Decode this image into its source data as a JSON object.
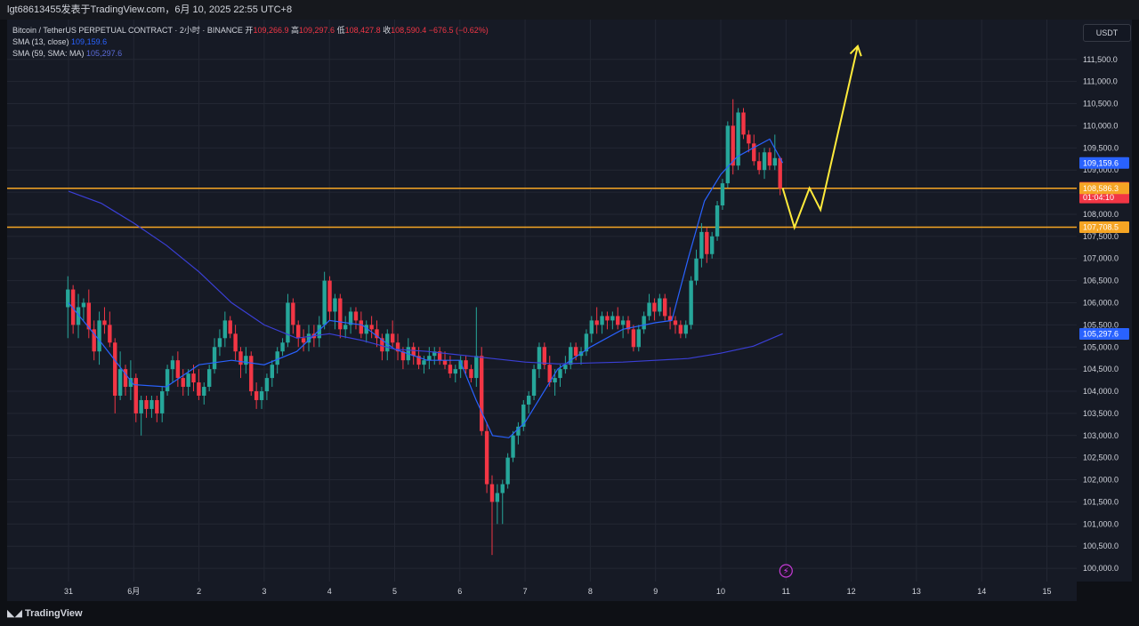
{
  "header": {
    "title": "lgt68613455发表于TradingView.com，6月 10, 2025 22:55 UTC+8"
  },
  "legend": {
    "symbol": "Bitcoin / TetherUS PERPETUAL CONTRACT · 2小时 · BINANCE",
    "ohlc": [
      {
        "label": "开",
        "value": "109,266.9"
      },
      {
        "label": "高",
        "value": "109,297.6"
      },
      {
        "label": "低",
        "value": "108,427.8"
      },
      {
        "label": "收",
        "value": "108,590.4"
      }
    ],
    "change": "−676.5 (−0.62%)",
    "sma1_label": "SMA (13, close)",
    "sma1_value": "109,159.6",
    "sma2_label": "SMA (59, SMA: MA)",
    "sma2_value": "105,297.6"
  },
  "currency_button": "USDT",
  "footer": {
    "logo": "TradingView"
  },
  "colors": {
    "up": "#26a69a",
    "down": "#f23645",
    "sma13": "#2962ff",
    "sma59": "#3a3fd6",
    "level": "#f5a524",
    "projection": "#ffeb3b",
    "background": "#161a25"
  },
  "icons": {
    "event": "lightning-icon",
    "logo": "tradingview-logo-icon"
  },
  "chart_data": {
    "type": "candlestick",
    "ylim": [
      99700,
      112400
    ],
    "y_ticks": [
      "100,000.0",
      "100,500.0",
      "101,000.0",
      "101,500.0",
      "102,000.0",
      "102,500.0",
      "103,000.0",
      "103,500.0",
      "104,000.0",
      "104,500.0",
      "105,000.0",
      "105,500.0",
      "106,000.0",
      "106,500.0",
      "107,000.0",
      "107,500.0",
      "108,000.0",
      "108,500.0",
      "109,000.0",
      "109,500.0",
      "110,000.0",
      "110,500.0",
      "111,000.0",
      "111,500.0"
    ],
    "x_ticks": [
      "31",
      "6月",
      "2",
      "3",
      "4",
      "5",
      "6",
      "7",
      "8",
      "9",
      "10",
      "11",
      "12",
      "13",
      "14",
      "15"
    ],
    "x_tick_days": [
      31,
      32,
      33,
      34,
      35,
      36,
      37,
      38,
      39,
      40,
      41,
      42,
      43,
      44,
      45,
      46
    ],
    "candles": [
      [
        105.9,
        106.6,
        105.2,
        106.3
      ],
      [
        106.3,
        106.4,
        105.3,
        105.5
      ],
      [
        105.5,
        106.2,
        105.2,
        105.9
      ],
      [
        105.9,
        106.1,
        105.6,
        106.0
      ],
      [
        106.0,
        106.3,
        105.2,
        105.4
      ],
      [
        105.4,
        105.6,
        104.7,
        104.9
      ],
      [
        104.9,
        105.8,
        104.6,
        105.6
      ],
      [
        105.6,
        105.9,
        105.3,
        105.5
      ],
      [
        105.5,
        105.8,
        105.0,
        105.1
      ],
      [
        105.1,
        105.2,
        103.5,
        103.9
      ],
      [
        103.9,
        104.9,
        103.8,
        104.5
      ],
      [
        104.5,
        104.6,
        103.9,
        104.1
      ],
      [
        104.1,
        104.7,
        103.8,
        104.3
      ],
      [
        104.3,
        104.4,
        103.3,
        103.5
      ],
      [
        103.5,
        103.9,
        103.0,
        103.8
      ],
      [
        103.8,
        103.9,
        103.4,
        103.6
      ],
      [
        103.6,
        103.9,
        103.4,
        103.8
      ],
      [
        103.8,
        103.9,
        103.3,
        103.5
      ],
      [
        103.5,
        104.1,
        103.3,
        104.0
      ],
      [
        104.0,
        104.6,
        103.9,
        104.5
      ],
      [
        104.5,
        104.8,
        104.2,
        104.7
      ],
      [
        104.7,
        104.9,
        104.1,
        104.3
      ],
      [
        104.3,
        104.5,
        103.9,
        104.1
      ],
      [
        104.1,
        104.5,
        103.9,
        104.4
      ],
      [
        104.4,
        104.6,
        104.0,
        104.2
      ],
      [
        104.2,
        104.5,
        103.8,
        103.9
      ],
      [
        103.9,
        104.2,
        103.7,
        104.1
      ],
      [
        104.1,
        104.6,
        104.0,
        104.5
      ],
      [
        104.5,
        105.2,
        104.4,
        105.0
      ],
      [
        105.0,
        105.4,
        104.8,
        105.2
      ],
      [
        105.2,
        105.8,
        105.0,
        105.6
      ],
      [
        105.6,
        105.7,
        105.2,
        105.3
      ],
      [
        105.3,
        105.5,
        104.7,
        104.9
      ],
      [
        104.9,
        105.0,
        104.3,
        104.6
      ],
      [
        104.6,
        105.0,
        104.4,
        104.8
      ],
      [
        104.8,
        104.9,
        103.9,
        104.0
      ],
      [
        104.0,
        104.2,
        103.6,
        103.8
      ],
      [
        103.8,
        104.1,
        103.6,
        104.0
      ],
      [
        104.0,
        104.4,
        103.8,
        104.3
      ],
      [
        104.3,
        104.7,
        104.1,
        104.6
      ],
      [
        104.6,
        105.0,
        104.4,
        104.9
      ],
      [
        104.9,
        105.2,
        104.8,
        105.1
      ],
      [
        105.1,
        106.2,
        105.0,
        106.0
      ],
      [
        106.0,
        106.1,
        105.3,
        105.5
      ],
      [
        105.5,
        105.6,
        105.0,
        105.2
      ],
      [
        105.2,
        105.4,
        104.9,
        105.1
      ],
      [
        105.1,
        105.5,
        104.9,
        105.3
      ],
      [
        105.3,
        105.5,
        105.0,
        105.2
      ],
      [
        105.2,
        105.7,
        105.0,
        105.5
      ],
      [
        105.5,
        106.7,
        105.4,
        106.5
      ],
      [
        106.5,
        106.6,
        105.6,
        105.8
      ],
      [
        105.8,
        106.2,
        105.4,
        106.1
      ],
      [
        106.1,
        106.2,
        105.2,
        105.4
      ],
      [
        105.4,
        105.7,
        105.2,
        105.5
      ],
      [
        105.5,
        105.9,
        105.3,
        105.8
      ],
      [
        105.8,
        105.9,
        105.4,
        105.6
      ],
      [
        105.6,
        105.8,
        105.2,
        105.3
      ],
      [
        105.3,
        105.6,
        105.1,
        105.5
      ],
      [
        105.5,
        105.7,
        105.2,
        105.4
      ],
      [
        105.4,
        105.6,
        105.0,
        105.2
      ],
      [
        105.2,
        105.3,
        104.7,
        104.9
      ],
      [
        104.9,
        105.4,
        104.7,
        105.3
      ],
      [
        105.3,
        105.6,
        105.0,
        105.1
      ],
      [
        105.1,
        105.3,
        104.7,
        104.9
      ],
      [
        104.9,
        105.0,
        104.5,
        104.7
      ],
      [
        104.7,
        105.2,
        104.6,
        105.0
      ],
      [
        105.0,
        105.1,
        104.6,
        104.8
      ],
      [
        104.8,
        105.0,
        104.5,
        104.6
      ],
      [
        104.6,
        104.8,
        104.4,
        104.7
      ],
      [
        104.7,
        105.0,
        104.5,
        104.8
      ],
      [
        104.8,
        105.0,
        104.6,
        104.9
      ],
      [
        104.9,
        105.0,
        104.6,
        104.7
      ],
      [
        104.7,
        104.9,
        104.5,
        104.6
      ],
      [
        104.6,
        104.8,
        104.3,
        104.4
      ],
      [
        104.4,
        104.6,
        104.2,
        104.5
      ],
      [
        104.5,
        104.8,
        104.3,
        104.7
      ],
      [
        104.7,
        104.8,
        104.4,
        104.5
      ],
      [
        104.5,
        104.6,
        104.2,
        104.3
      ],
      [
        104.3,
        105.9,
        104.1,
        104.8
      ],
      [
        104.8,
        105.0,
        103.0,
        103.1
      ],
      [
        103.1,
        103.3,
        101.7,
        101.9
      ],
      [
        101.9,
        102.1,
        100.3,
        101.5
      ],
      [
        101.5,
        101.9,
        101.0,
        101.7
      ],
      [
        101.7,
        102.0,
        101.0,
        101.9
      ],
      [
        101.9,
        102.6,
        101.8,
        102.5
      ],
      [
        102.5,
        103.1,
        102.4,
        103.0
      ],
      [
        103.0,
        103.3,
        102.8,
        103.2
      ],
      [
        103.2,
        103.8,
        103.1,
        103.7
      ],
      [
        103.7,
        104.0,
        103.5,
        103.9
      ],
      [
        103.9,
        104.6,
        103.8,
        104.5
      ],
      [
        104.5,
        105.1,
        104.3,
        105.0
      ],
      [
        105.0,
        105.1,
        104.5,
        104.6
      ],
      [
        104.6,
        104.8,
        104.1,
        104.2
      ],
      [
        104.2,
        104.5,
        103.9,
        104.3
      ],
      [
        104.3,
        104.6,
        104.1,
        104.5
      ],
      [
        104.5,
        104.8,
        104.4,
        104.6
      ],
      [
        104.6,
        105.1,
        104.5,
        105.0
      ],
      [
        105.0,
        105.1,
        104.7,
        104.8
      ],
      [
        104.8,
        105.0,
        104.6,
        104.9
      ],
      [
        104.9,
        105.4,
        104.8,
        105.3
      ],
      [
        105.3,
        105.7,
        105.1,
        105.6
      ],
      [
        105.6,
        105.9,
        105.3,
        105.5
      ],
      [
        105.5,
        105.8,
        105.3,
        105.7
      ],
      [
        105.7,
        105.8,
        105.4,
        105.6
      ],
      [
        105.6,
        105.8,
        105.4,
        105.7
      ],
      [
        105.7,
        105.9,
        105.4,
        105.5
      ],
      [
        105.5,
        105.7,
        105.2,
        105.6
      ],
      [
        105.6,
        105.7,
        105.3,
        105.4
      ],
      [
        105.4,
        105.5,
        104.9,
        105.0
      ],
      [
        105.0,
        105.5,
        104.9,
        105.4
      ],
      [
        105.4,
        105.8,
        105.3,
        105.7
      ],
      [
        105.7,
        106.2,
        105.6,
        106.0
      ],
      [
        106.0,
        106.1,
        105.6,
        105.8
      ],
      [
        105.8,
        106.2,
        105.7,
        106.1
      ],
      [
        106.1,
        106.2,
        105.6,
        105.7
      ],
      [
        105.7,
        105.9,
        105.4,
        105.6
      ],
      [
        105.6,
        105.7,
        105.3,
        105.5
      ],
      [
        105.5,
        105.6,
        105.2,
        105.3
      ],
      [
        105.3,
        105.6,
        105.2,
        105.5
      ],
      [
        105.5,
        106.6,
        105.4,
        106.5
      ],
      [
        106.5,
        107.2,
        106.4,
        107.0
      ],
      [
        107.0,
        107.8,
        106.8,
        107.6
      ],
      [
        107.6,
        107.7,
        106.9,
        107.1
      ],
      [
        107.1,
        107.6,
        107.0,
        107.5
      ],
      [
        107.5,
        108.3,
        107.4,
        108.2
      ],
      [
        108.2,
        108.8,
        108.1,
        108.7
      ],
      [
        108.7,
        110.1,
        108.6,
        110.0
      ],
      [
        110.0,
        110.6,
        108.9,
        109.1
      ],
      [
        109.1,
        110.4,
        109.0,
        110.3
      ],
      [
        110.3,
        110.4,
        109.7,
        109.8
      ],
      [
        109.8,
        109.9,
        109.4,
        109.6
      ],
      [
        109.6,
        109.8,
        109.1,
        109.2
      ],
      [
        109.2,
        109.4,
        108.9,
        109.0
      ],
      [
        109.0,
        109.5,
        108.8,
        109.4
      ],
      [
        109.4,
        109.5,
        109.0,
        109.1
      ],
      [
        109.1,
        109.8,
        109.0,
        109.27
      ],
      [
        109.27,
        109.3,
        108.43,
        108.59
      ]
    ],
    "series": [
      {
        "name": "SMA (13, close)",
        "x": [
          31.0,
          31.5,
          32.0,
          32.5,
          33.0,
          33.5,
          34.0,
          34.5,
          35.0,
          35.5,
          36.0,
          36.5,
          37.0,
          37.25,
          37.5,
          37.75,
          38.0,
          38.5,
          39.0,
          39.5,
          40.0,
          40.25,
          40.5,
          40.75,
          41.0,
          41.25,
          41.5,
          41.75,
          41.95
        ],
        "y": [
          106000,
          105100,
          104150,
          104100,
          104600,
          104700,
          104600,
          104900,
          105600,
          105500,
          104950,
          104700,
          104700,
          103800,
          103000,
          102950,
          103300,
          104500,
          105000,
          105400,
          105550,
          105600,
          107000,
          108300,
          108900,
          109300,
          109500,
          109700,
          109160
        ]
      },
      {
        "name": "SMA (59, SMA: MA)",
        "x": [
          31.0,
          31.5,
          32.0,
          32.5,
          33.0,
          33.5,
          34.0,
          34.5,
          35.0,
          35.5,
          36.0,
          36.5,
          37.0,
          37.5,
          38.0,
          38.5,
          39.0,
          39.5,
          40.0,
          40.5,
          41.0,
          41.5,
          41.95
        ],
        "y": [
          108520,
          108250,
          107800,
          107300,
          106700,
          106000,
          105500,
          105200,
          105300,
          105150,
          104950,
          104900,
          104820,
          104740,
          104660,
          104620,
          104640,
          104660,
          104700,
          104740,
          104860,
          105020,
          105300
        ]
      }
    ],
    "levels": [
      108586.3,
      107708.5
    ],
    "projection": {
      "x": [
        41.95,
        42.13,
        42.36,
        42.53,
        43.1
      ],
      "y": [
        108590,
        107700,
        108590,
        108100,
        111800
      ]
    },
    "price_labels": [
      {
        "value": 109159.6,
        "text": "109,159.6",
        "color": "#2962ff"
      },
      {
        "value": 108590.4,
        "text": "108,590.4",
        "sub": "01:04:10",
        "color": "#f23645"
      },
      {
        "value": 108586.3,
        "text": "108,586.3",
        "color": "#f5a524"
      },
      {
        "value": 107708.5,
        "text": "107,708.5",
        "color": "#f5a524"
      },
      {
        "value": 105297.6,
        "text": "105,297.6",
        "color": "#2962ff"
      }
    ]
  }
}
